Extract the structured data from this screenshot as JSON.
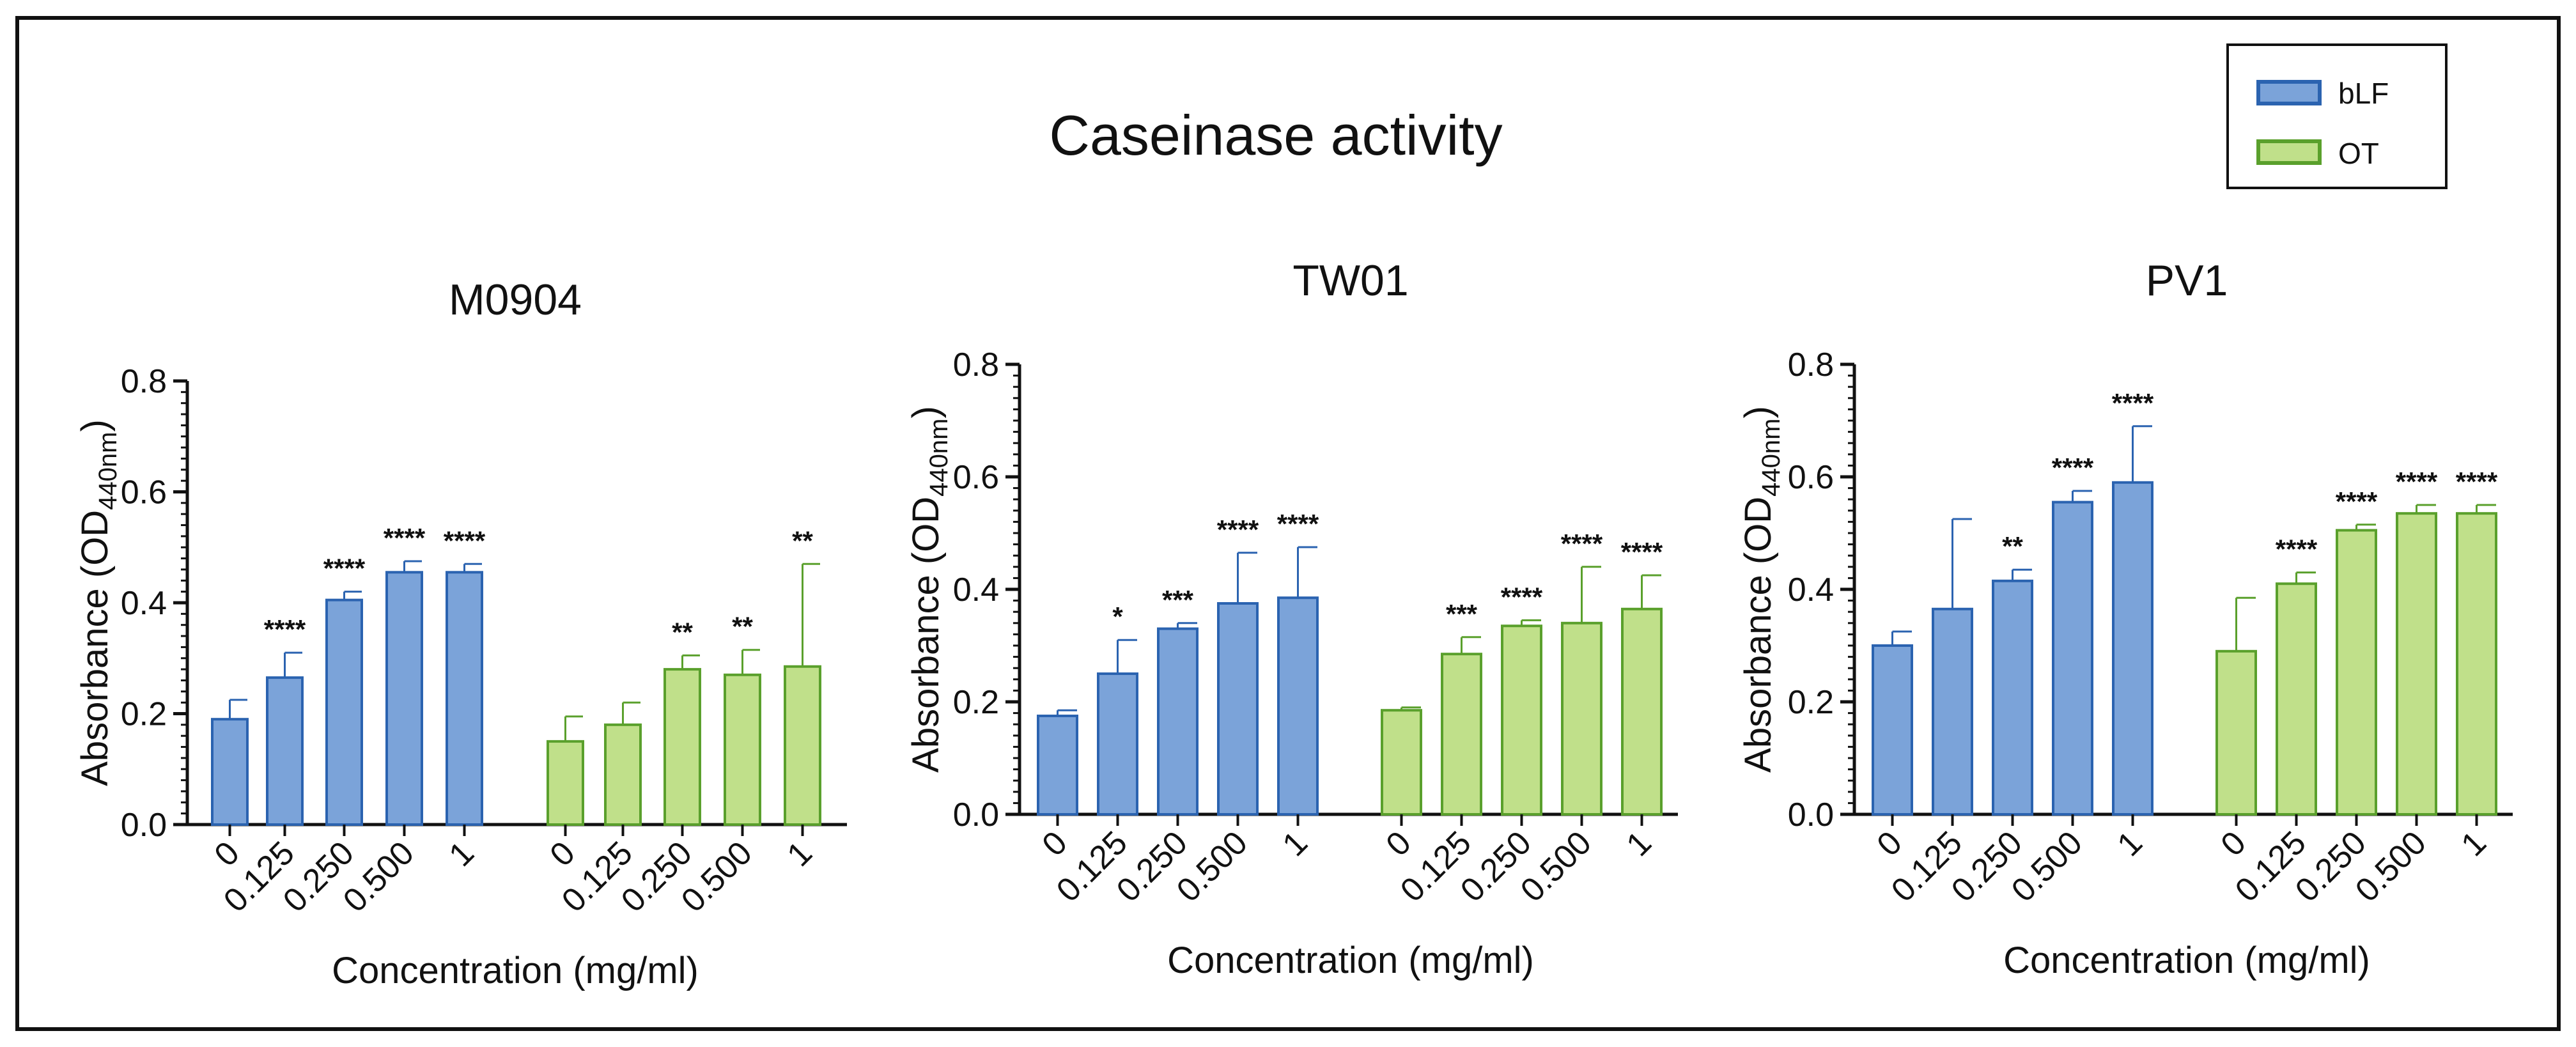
{
  "chart_data": {
    "type": "bar",
    "title": "Caseinase activity",
    "legend": {
      "placement": "top-right",
      "items": [
        {
          "name": "bLF",
          "color": "#7ba3d9",
          "edge": "#2b63b0",
          "text_color": "#1f4e9c"
        },
        {
          "name": "OT",
          "color": "#c0e08a",
          "edge": "#5aa02c",
          "text_color": "#4f9a20"
        }
      ]
    },
    "panels": [
      {
        "title": "M0904",
        "ylabel": "Absorbance (OD",
        "ylabel_sub": "440nm",
        "ylabel_close": ")",
        "xlabel": "Concentration (mg/ml)",
        "ylim": [
          0,
          0.8
        ],
        "yticks": [
          "0.0",
          "0.2",
          "0.4",
          "0.6",
          "0.8"
        ],
        "categories": [
          "0",
          "0.125",
          "0.250",
          "0.500",
          "1"
        ],
        "series": [
          {
            "name": "bLF",
            "values": [
              0.19,
              0.265,
              0.405,
              0.455,
              0.455
            ],
            "errors": [
              0.035,
              0.045,
              0.015,
              0.02,
              0.015
            ],
            "sig": [
              "",
              "****",
              "****",
              "****",
              "****"
            ]
          },
          {
            "name": "OT",
            "values": [
              0.15,
              0.18,
              0.28,
              0.27,
              0.285
            ],
            "errors": [
              0.045,
              0.04,
              0.025,
              0.045,
              0.185
            ],
            "sig": [
              "",
              "",
              "**",
              "**",
              "**"
            ]
          }
        ]
      },
      {
        "title": "TW01",
        "ylabel": "Absorbance (OD",
        "ylabel_sub": "440nm",
        "ylabel_close": ")",
        "xlabel": "Concentration (mg/ml)",
        "ylim": [
          0,
          0.8
        ],
        "yticks": [
          "0.0",
          "0.2",
          "0.4",
          "0.6",
          "0.8"
        ],
        "categories": [
          "0",
          "0.125",
          "0.250",
          "0.500",
          "1"
        ],
        "series": [
          {
            "name": "bLF",
            "values": [
              0.175,
              0.25,
              0.33,
              0.375,
              0.385
            ],
            "errors": [
              0.01,
              0.06,
              0.01,
              0.09,
              0.09
            ],
            "sig": [
              "",
              "*",
              "***",
              "****",
              "****"
            ]
          },
          {
            "name": "OT",
            "values": [
              0.185,
              0.285,
              0.335,
              0.34,
              0.365
            ],
            "errors": [
              0.005,
              0.03,
              0.01,
              0.1,
              0.06
            ],
            "sig": [
              "",
              "***",
              "****",
              "****",
              "****"
            ]
          }
        ]
      },
      {
        "title": "PV1",
        "ylabel": "Absorbance (OD",
        "ylabel_sub": "440nm",
        "ylabel_close": ")",
        "xlabel": "Concentration (mg/ml)",
        "ylim": [
          0,
          0.8
        ],
        "yticks": [
          "0.0",
          "0.2",
          "0.4",
          "0.6",
          "0.8"
        ],
        "categories": [
          "0",
          "0.125",
          "0.250",
          "0.500",
          "1"
        ],
        "series": [
          {
            "name": "bLF",
            "values": [
              0.3,
              0.365,
              0.415,
              0.555,
              0.59
            ],
            "errors": [
              0.025,
              0.16,
              0.02,
              0.02,
              0.1
            ],
            "sig": [
              "",
              "",
              "**",
              "****",
              "****"
            ]
          },
          {
            "name": "OT",
            "values": [
              0.29,
              0.41,
              0.505,
              0.535,
              0.535
            ],
            "errors": [
              0.095,
              0.02,
              0.01,
              0.015,
              0.015
            ],
            "sig": [
              "",
              "****",
              "****",
              "****",
              "****"
            ]
          }
        ]
      }
    ]
  }
}
